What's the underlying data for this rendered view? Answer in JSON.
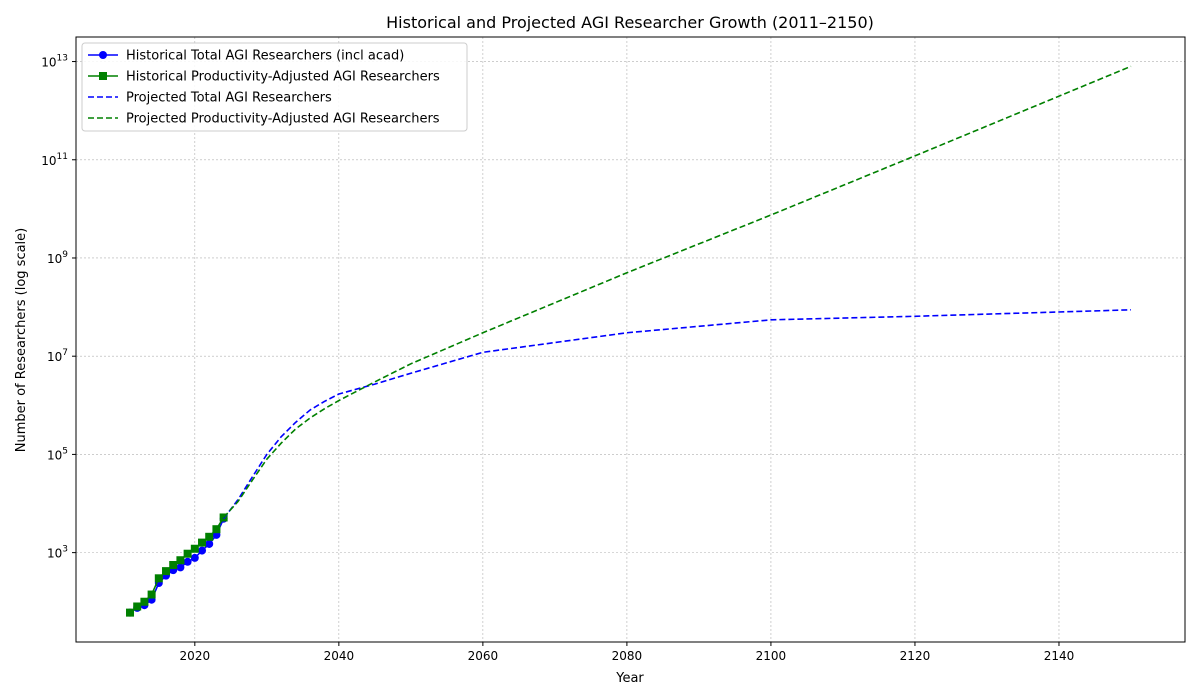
{
  "chart_data": {
    "type": "line",
    "title": "Historical and Projected AGI Researcher Growth (2011–2150)",
    "xlabel": "Year",
    "ylabel": "Number of Researchers (log scale)",
    "xlim": [
      2003.5,
      2157.5
    ],
    "ylim_log10": [
      1.18,
      13.5
    ],
    "y_scale": "log",
    "grid": true,
    "legend_position": "top-left",
    "x_ticks": [
      2020,
      2040,
      2060,
      2080,
      2100,
      2120,
      2140
    ],
    "x_tick_labels": [
      "2020",
      "2040",
      "2060",
      "2080",
      "2100",
      "2120",
      "2140"
    ],
    "y_ticks_exp": [
      3,
      5,
      7,
      9,
      11,
      13
    ],
    "y_tick_base": "10",
    "series": [
      {
        "name": "Historical Total AGI Researchers (incl acad)",
        "color": "#0000ff",
        "line_style": "solid",
        "marker": "circle",
        "x": [
          2011,
          2012,
          2013,
          2014,
          2015,
          2016,
          2017,
          2018,
          2019,
          2020,
          2021,
          2022,
          2023,
          2024
        ],
        "y": [
          60,
          75,
          85,
          110,
          240,
          340,
          440,
          500,
          650,
          780,
          1100,
          1500,
          2300,
          4900
        ]
      },
      {
        "name": "Historical Productivity-Adjusted AGI Researchers",
        "color": "#008000",
        "line_style": "solid",
        "marker": "square",
        "x": [
          2011,
          2012,
          2013,
          2014,
          2015,
          2016,
          2017,
          2018,
          2019,
          2020,
          2021,
          2022,
          2023,
          2024
        ],
        "y": [
          60,
          80,
          100,
          140,
          300,
          420,
          560,
          700,
          950,
          1200,
          1600,
          2100,
          3000,
          5200
        ]
      },
      {
        "name": "Projected Total AGI Researchers",
        "color": "#0000ff",
        "line_style": "dashed",
        "marker": "none",
        "x": [
          2024,
          2026,
          2028,
          2030,
          2032,
          2034,
          2036,
          2038,
          2040,
          2045,
          2050,
          2060,
          2080,
          2100,
          2120,
          2150
        ],
        "y": [
          4900,
          12000,
          35000,
          100000,
          230000,
          450000,
          800000,
          1200000,
          1700000,
          2700000,
          4500000,
          12000000,
          30000000,
          55000000,
          65000000,
          88000000
        ]
      },
      {
        "name": "Projected Productivity-Adjusted AGI Researchers",
        "color": "#008000",
        "line_style": "dashed",
        "marker": "none",
        "x": [
          2024,
          2026,
          2028,
          2030,
          2032,
          2034,
          2036,
          2038,
          2040,
          2045,
          2050,
          2060,
          2080,
          2100,
          2120,
          2150
        ],
        "y": [
          5200,
          11000,
          30000,
          80000,
          170000,
          330000,
          550000,
          850000,
          1250000,
          3000000,
          7000000,
          30000000,
          500000000,
          7500000000,
          120000000000,
          8000000000000
        ]
      }
    ]
  }
}
